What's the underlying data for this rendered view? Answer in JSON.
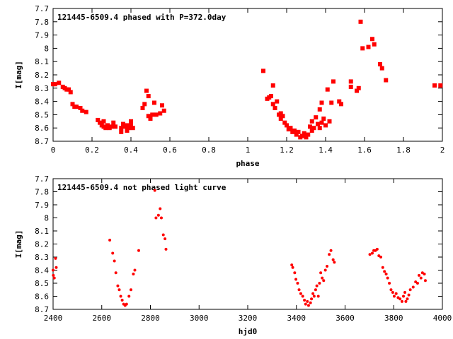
{
  "chart_data": [
    {
      "type": "scatter",
      "title": "121445-6509.4 phased with P=372.0day",
      "xlabel": "phase",
      "ylabel": "I[mag]",
      "xlim": [
        0,
        2
      ],
      "ylim": [
        8.7,
        7.7
      ],
      "y_inverted": true,
      "grid": false,
      "marker": "x",
      "color": "#ff0000",
      "xticks": [
        "0",
        "0.2",
        "0.4",
        "0.6",
        "0.8",
        "1",
        "1.2",
        "1.4",
        "1.6",
        "1.8",
        "2"
      ],
      "yticks": [
        "7.7",
        "7.8",
        "7.9",
        "8",
        "8.1",
        "8.2",
        "8.3",
        "8.4",
        "8.5",
        "8.6",
        "8.7"
      ],
      "points": [
        [
          0.0,
          8.27
        ],
        [
          0.01,
          8.27
        ],
        [
          0.03,
          8.26
        ],
        [
          0.05,
          8.29
        ],
        [
          0.06,
          8.3
        ],
        [
          0.07,
          8.31
        ],
        [
          0.08,
          8.31
        ],
        [
          0.09,
          8.33
        ],
        [
          0.1,
          8.42
        ],
        [
          0.11,
          8.44
        ],
        [
          0.12,
          8.44
        ],
        [
          0.14,
          8.45
        ],
        [
          0.15,
          8.47
        ],
        [
          0.17,
          8.48
        ],
        [
          0.23,
          8.54
        ],
        [
          0.24,
          8.56
        ],
        [
          0.25,
          8.58
        ],
        [
          0.26,
          8.55
        ],
        [
          0.26,
          8.59
        ],
        [
          0.27,
          8.6
        ],
        [
          0.28,
          8.58
        ],
        [
          0.29,
          8.6
        ],
        [
          0.3,
          8.59
        ],
        [
          0.31,
          8.56
        ],
        [
          0.32,
          8.59
        ],
        [
          0.35,
          8.6
        ],
        [
          0.35,
          8.63
        ],
        [
          0.36,
          8.57
        ],
        [
          0.37,
          8.59
        ],
        [
          0.38,
          8.62
        ],
        [
          0.38,
          8.58
        ],
        [
          0.39,
          8.6
        ],
        [
          0.4,
          8.57
        ],
        [
          0.4,
          8.55
        ],
        [
          0.41,
          8.6
        ],
        [
          0.46,
          8.45
        ],
        [
          0.47,
          8.42
        ],
        [
          0.48,
          8.32
        ],
        [
          0.49,
          8.36
        ],
        [
          0.49,
          8.51
        ],
        [
          0.5,
          8.53
        ],
        [
          0.51,
          8.5
        ],
        [
          0.52,
          8.41
        ],
        [
          0.53,
          8.5
        ],
        [
          0.55,
          8.49
        ],
        [
          0.56,
          8.43
        ],
        [
          0.57,
          8.47
        ],
        [
          1.08,
          8.17
        ],
        [
          1.1,
          8.38
        ],
        [
          1.11,
          8.37
        ],
        [
          1.12,
          8.36
        ],
        [
          1.13,
          8.28
        ],
        [
          1.13,
          8.42
        ],
        [
          1.14,
          8.45
        ],
        [
          1.15,
          8.4
        ],
        [
          1.16,
          8.5
        ],
        [
          1.17,
          8.49
        ],
        [
          1.17,
          8.53
        ],
        [
          1.18,
          8.51
        ],
        [
          1.19,
          8.56
        ],
        [
          1.2,
          8.58
        ],
        [
          1.21,
          8.61
        ],
        [
          1.22,
          8.6
        ],
        [
          1.23,
          8.63
        ],
        [
          1.24,
          8.62
        ],
        [
          1.25,
          8.65
        ],
        [
          1.26,
          8.63
        ],
        [
          1.27,
          8.67
        ],
        [
          1.28,
          8.66
        ],
        [
          1.29,
          8.64
        ],
        [
          1.3,
          8.67
        ],
        [
          1.31,
          8.65
        ],
        [
          1.32,
          8.59
        ],
        [
          1.33,
          8.55
        ],
        [
          1.33,
          8.62
        ],
        [
          1.34,
          8.6
        ],
        [
          1.35,
          8.52
        ],
        [
          1.36,
          8.57
        ],
        [
          1.37,
          8.46
        ],
        [
          1.37,
          8.6
        ],
        [
          1.38,
          8.56
        ],
        [
          1.38,
          8.41
        ],
        [
          1.39,
          8.53
        ],
        [
          1.4,
          8.58
        ],
        [
          1.41,
          8.31
        ],
        [
          1.42,
          8.55
        ],
        [
          1.43,
          8.41
        ],
        [
          1.44,
          8.25
        ],
        [
          1.47,
          8.4
        ],
        [
          1.48,
          8.42
        ],
        [
          1.53,
          8.25
        ],
        [
          1.53,
          8.29
        ],
        [
          1.56,
          8.32
        ],
        [
          1.57,
          8.3
        ],
        [
          1.58,
          7.8
        ],
        [
          1.59,
          8.0
        ],
        [
          1.62,
          7.99
        ],
        [
          1.64,
          7.93
        ],
        [
          1.65,
          7.97
        ],
        [
          1.68,
          8.12
        ],
        [
          1.69,
          8.15
        ],
        [
          1.71,
          8.24
        ],
        [
          1.96,
          8.28
        ],
        [
          1.99,
          8.28
        ]
      ]
    },
    {
      "type": "scatter",
      "title": "121445-6509.4 not phased light curve",
      "xlabel": "hjd0",
      "ylabel": "I[mag]",
      "xlim": [
        2400,
        4000
      ],
      "ylim": [
        8.7,
        7.7
      ],
      "y_inverted": true,
      "grid": false,
      "marker": "dot",
      "color": "#ff0000",
      "xticks": [
        "2400",
        "2600",
        "2800",
        "3000",
        "3200",
        "3400",
        "3600",
        "3800",
        "4000"
      ],
      "yticks": [
        "7.7",
        "7.8",
        "7.9",
        "8",
        "8.1",
        "8.2",
        "8.3",
        "8.4",
        "8.5",
        "8.6",
        "8.7"
      ],
      "points": [
        [
          2400,
          8.4
        ],
        [
          2401,
          8.44
        ],
        [
          2405,
          8.46
        ],
        [
          2410,
          8.31
        ],
        [
          2413,
          8.38
        ],
        [
          2633,
          8.17
        ],
        [
          2645,
          8.27
        ],
        [
          2652,
          8.33
        ],
        [
          2658,
          8.42
        ],
        [
          2666,
          8.52
        ],
        [
          2672,
          8.55
        ],
        [
          2678,
          8.6
        ],
        [
          2684,
          8.63
        ],
        [
          2690,
          8.66
        ],
        [
          2696,
          8.67
        ],
        [
          2702,
          8.66
        ],
        [
          2712,
          8.6
        ],
        [
          2720,
          8.55
        ],
        [
          2730,
          8.43
        ],
        [
          2736,
          8.4
        ],
        [
          2752,
          8.25
        ],
        [
          2818,
          7.79
        ],
        [
          2823,
          8.0
        ],
        [
          2833,
          7.98
        ],
        [
          2840,
          7.93
        ],
        [
          2845,
          8.0
        ],
        [
          2853,
          8.13
        ],
        [
          2860,
          8.16
        ],
        [
          2864,
          8.24
        ],
        [
          3381,
          8.36
        ],
        [
          3385,
          8.38
        ],
        [
          3393,
          8.42
        ],
        [
          3398,
          8.47
        ],
        [
          3405,
          8.5
        ],
        [
          3411,
          8.55
        ],
        [
          3418,
          8.58
        ],
        [
          3426,
          8.6
        ],
        [
          3433,
          8.63
        ],
        [
          3438,
          8.66
        ],
        [
          3445,
          8.64
        ],
        [
          3450,
          8.67
        ],
        [
          3458,
          8.65
        ],
        [
          3462,
          8.62
        ],
        [
          3468,
          8.58
        ],
        [
          3473,
          8.6
        ],
        [
          3479,
          8.55
        ],
        [
          3484,
          8.52
        ],
        [
          3490,
          8.6
        ],
        [
          3495,
          8.5
        ],
        [
          3500,
          8.42
        ],
        [
          3506,
          8.46
        ],
        [
          3512,
          8.48
        ],
        [
          3519,
          8.4
        ],
        [
          3526,
          8.37
        ],
        [
          3535,
          8.28
        ],
        [
          3542,
          8.25
        ],
        [
          3551,
          8.32
        ],
        [
          3556,
          8.34
        ],
        [
          3702,
          8.28
        ],
        [
          3712,
          8.27
        ],
        [
          3718,
          8.25
        ],
        [
          3725,
          8.25
        ],
        [
          3732,
          8.24
        ],
        [
          3739,
          8.29
        ],
        [
          3747,
          8.3
        ],
        [
          3755,
          8.38
        ],
        [
          3762,
          8.41
        ],
        [
          3769,
          8.43
        ],
        [
          3775,
          8.46
        ],
        [
          3782,
          8.5
        ],
        [
          3789,
          8.55
        ],
        [
          3796,
          8.57
        ],
        [
          3802,
          8.6
        ],
        [
          3810,
          8.58
        ],
        [
          3818,
          8.61
        ],
        [
          3826,
          8.62
        ],
        [
          3834,
          8.64
        ],
        [
          3840,
          8.6
        ],
        [
          3846,
          8.57
        ],
        [
          3850,
          8.64
        ],
        [
          3856,
          8.62
        ],
        [
          3862,
          8.59
        ],
        [
          3868,
          8.55
        ],
        [
          3880,
          8.53
        ],
        [
          3890,
          8.49
        ],
        [
          3898,
          8.5
        ],
        [
          3904,
          8.44
        ],
        [
          3912,
          8.46
        ],
        [
          3918,
          8.42
        ],
        [
          3926,
          8.43
        ],
        [
          3930,
          8.48
        ]
      ]
    }
  ]
}
